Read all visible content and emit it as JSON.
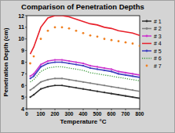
{
  "chart_data": {
    "type": "line",
    "title": "Comparison of Penetration Depths",
    "x_label": "Temperature °C",
    "y_label": "Penetration Depth (cm)",
    "x": [
      25,
      50,
      100,
      150,
      200,
      250,
      300,
      350,
      400,
      450,
      500,
      550,
      600,
      650,
      700,
      750,
      800
    ],
    "xlim": [
      0,
      800
    ],
    "xticks": [
      0,
      100,
      200,
      300,
      400,
      500,
      600,
      700,
      800
    ],
    "ylim": [
      4,
      12
    ],
    "yticks": [
      4,
      5,
      6,
      7,
      8,
      9,
      10,
      11,
      12
    ],
    "legend": "right",
    "series": [
      {
        "name": "# 1",
        "color": "#303030",
        "line_style": "solid",
        "marker": "circle",
        "values": [
          5.0,
          5.2,
          5.7,
          5.9,
          6.0,
          6.0,
          5.9,
          5.8,
          5.7,
          5.6,
          5.5,
          5.4,
          5.3,
          5.2,
          5.1,
          5.0,
          4.9
        ]
      },
      {
        "name": "# 2",
        "color": "#808080",
        "line_style": "solid",
        "marker": "circle",
        "values": [
          5.6,
          5.8,
          6.3,
          6.5,
          6.6,
          6.6,
          6.5,
          6.4,
          6.3,
          6.2,
          6.1,
          6.0,
          5.9,
          5.8,
          5.7,
          5.6,
          5.5
        ]
      },
      {
        "name": "# 3",
        "color": "#cc33cc",
        "line_style": "solid",
        "marker": "circle",
        "values": [
          6.8,
          7.0,
          7.8,
          8.1,
          8.2,
          8.2,
          8.1,
          8.0,
          7.9,
          7.7,
          7.6,
          7.5,
          7.4,
          7.2,
          7.1,
          7.0,
          6.9
        ]
      },
      {
        "name": "# 4",
        "color": "#e8202a",
        "line_style": "solid",
        "marker": "none",
        "values": [
          8.7,
          9.3,
          11.0,
          11.8,
          12.0,
          12.0,
          11.9,
          11.7,
          11.5,
          11.3,
          11.2,
          11.0,
          10.9,
          10.7,
          10.6,
          10.5,
          10.3
        ]
      },
      {
        "name": "# 5",
        "color": "#4040c0",
        "line_style": "solid",
        "marker": "circle",
        "values": [
          6.6,
          6.8,
          7.6,
          7.9,
          8.0,
          8.0,
          7.9,
          7.8,
          7.7,
          7.5,
          7.4,
          7.3,
          7.2,
          7.0,
          6.9,
          6.8,
          6.7
        ]
      },
      {
        "name": "# 6",
        "color": "#3a9a3a",
        "line_style": "dotted",
        "marker": "none",
        "values": [
          6.3,
          6.5,
          7.2,
          7.5,
          7.6,
          7.6,
          7.5,
          7.4,
          7.3,
          7.1,
          7.0,
          6.9,
          6.8,
          6.7,
          6.6,
          6.5,
          6.4
        ]
      },
      {
        "name": "# 7",
        "color": "#f08020",
        "line_style": "none",
        "marker": "circle",
        "values": [
          7.9,
          8.5,
          10.0,
          10.7,
          11.0,
          11.0,
          10.9,
          10.7,
          10.5,
          10.3,
          10.2,
          10.0,
          9.9,
          9.8,
          9.7,
          9.6,
          9.4
        ]
      }
    ]
  }
}
